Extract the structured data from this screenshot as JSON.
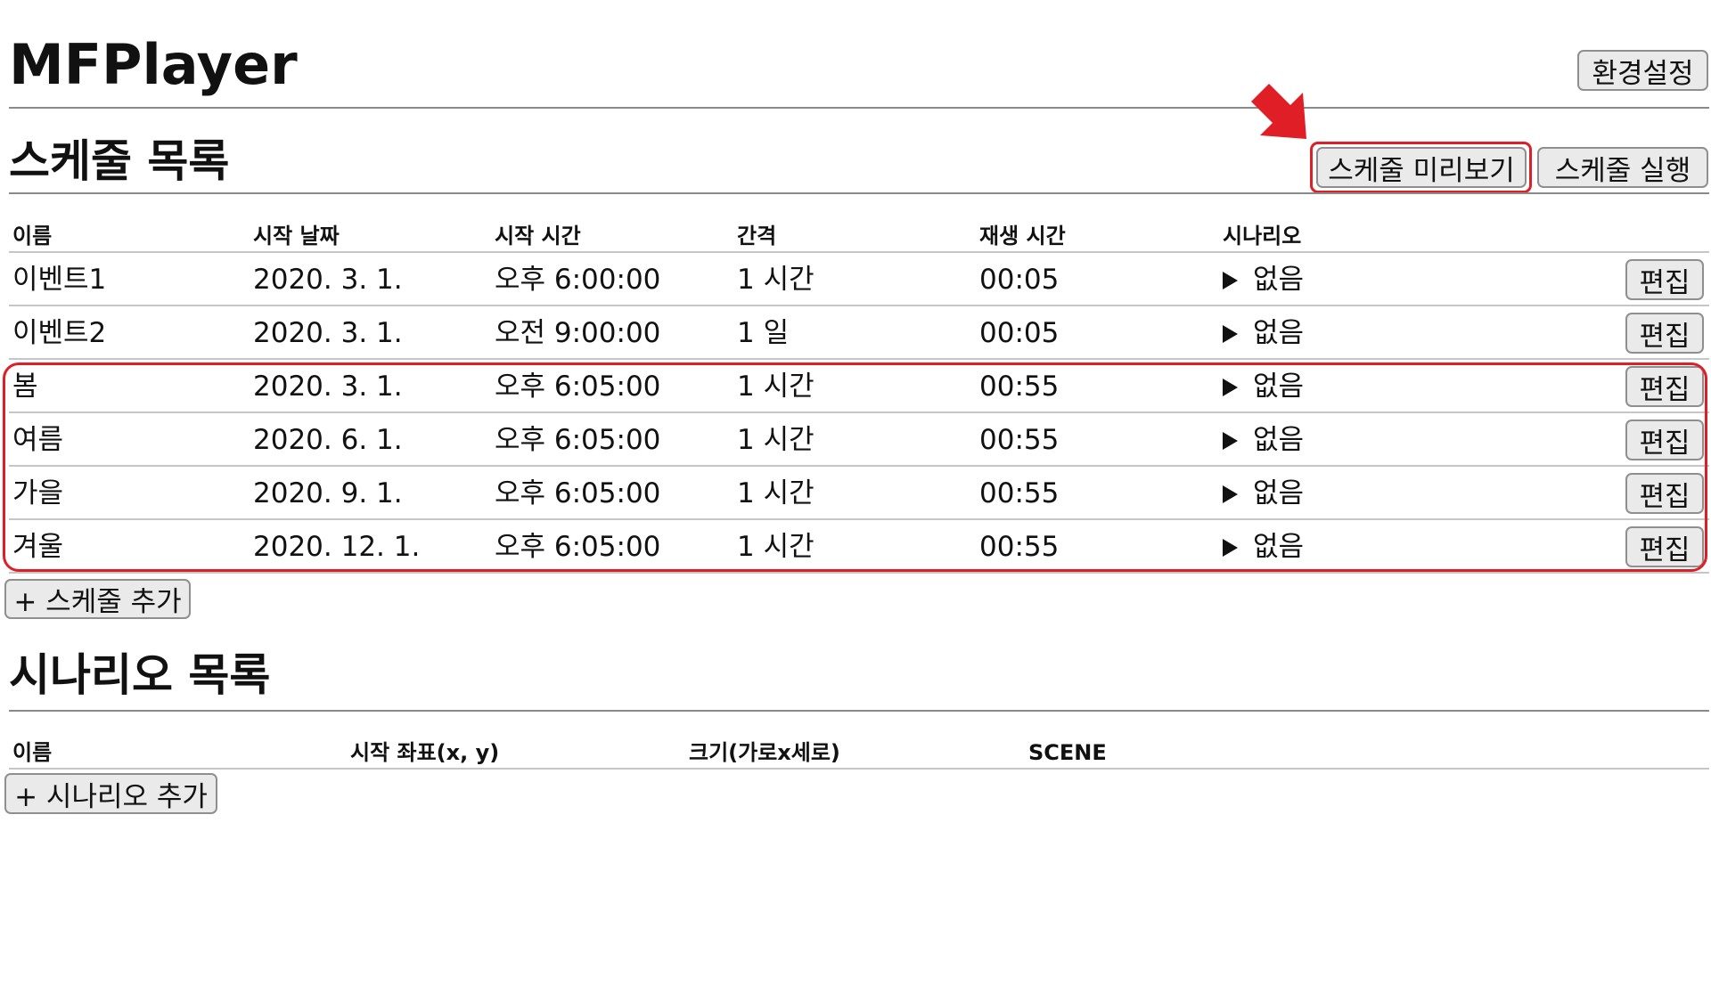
{
  "app": {
    "title": "MFPlayer"
  },
  "header": {
    "settings_label": "환경설정"
  },
  "schedule": {
    "title": "스케줄 목록",
    "preview_label": "스케줄 미리보기",
    "run_label": "스케줄 실행",
    "columns": [
      "이름",
      "시작 날짜",
      "시작 시간",
      "간격",
      "재생 시간",
      "시나리오"
    ],
    "rows": [
      {
        "name": "이벤트1",
        "date": "2020. 3. 1.",
        "time": "오후 6:00:00",
        "interval": "1 시간",
        "duration": "00:05",
        "scenario": "없음",
        "edit": "편집"
      },
      {
        "name": "이벤트2",
        "date": "2020. 3. 1.",
        "time": "오전 9:00:00",
        "interval": "1 일",
        "duration": "00:05",
        "scenario": "없음",
        "edit": "편집"
      },
      {
        "name": "봄",
        "date": "2020. 3. 1.",
        "time": "오후 6:05:00",
        "interval": "1 시간",
        "duration": "00:55",
        "scenario": "없음",
        "edit": "편집"
      },
      {
        "name": "여름",
        "date": "2020. 6. 1.",
        "time": "오후 6:05:00",
        "interval": "1 시간",
        "duration": "00:55",
        "scenario": "없음",
        "edit": "편집"
      },
      {
        "name": "가을",
        "date": "2020. 9. 1.",
        "time": "오후 6:05:00",
        "interval": "1 시간",
        "duration": "00:55",
        "scenario": "없음",
        "edit": "편집"
      },
      {
        "name": "겨울",
        "date": "2020. 12. 1.",
        "time": "오후 6:05:00",
        "interval": "1 시간",
        "duration": "00:55",
        "scenario": "없음",
        "edit": "편집"
      }
    ],
    "add_label": "+ 스케줄 추가"
  },
  "scenario": {
    "title": "시나리오 목록",
    "columns": [
      "이름",
      "시작 좌표(x, y)",
      "크기(가로x세로)",
      "SCENE"
    ],
    "add_label": "+ 시나리오 추가"
  },
  "annotation": {
    "color": "#e01e25"
  }
}
